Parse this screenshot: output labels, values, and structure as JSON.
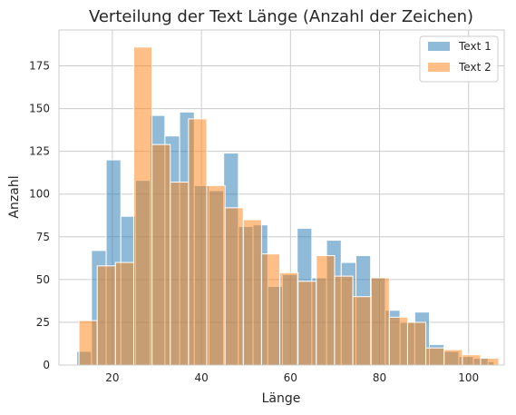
{
  "chart_data": {
    "type": "bar",
    "title": "Verteilung der Text Länge (Anzahl der Zeichen)",
    "xlabel": "Länge",
    "ylabel": "Anzahl",
    "xlim": [
      8,
      108
    ],
    "ylim": [
      0,
      196
    ],
    "xticks": [
      20,
      40,
      60,
      80,
      100
    ],
    "yticks": [
      0,
      25,
      50,
      75,
      100,
      125,
      150,
      175
    ],
    "grid": true,
    "legend_position": "top-right",
    "series": [
      {
        "name": "Text 1",
        "color": "#1f77b4",
        "opacity": 0.5,
        "bins": [
          [
            12,
            15.3,
            8
          ],
          [
            15.3,
            18.6,
            67
          ],
          [
            18.6,
            21.9,
            120
          ],
          [
            21.9,
            25.2,
            87
          ],
          [
            25.2,
            28.5,
            108
          ],
          [
            28.5,
            31.8,
            146
          ],
          [
            31.8,
            35.1,
            134
          ],
          [
            35.1,
            38.4,
            148
          ],
          [
            38.4,
            41.7,
            105
          ],
          [
            41.7,
            45.0,
            102
          ],
          [
            45.0,
            48.3,
            124
          ],
          [
            48.3,
            51.6,
            81
          ],
          [
            51.6,
            54.9,
            82
          ],
          [
            54.9,
            58.2,
            46
          ],
          [
            58.2,
            61.5,
            53
          ],
          [
            61.5,
            64.8,
            80
          ],
          [
            64.8,
            68.1,
            51
          ],
          [
            68.1,
            71.4,
            73
          ],
          [
            71.4,
            74.7,
            60
          ],
          [
            74.7,
            78.0,
            64
          ],
          [
            78.0,
            81.3,
            51
          ],
          [
            81.3,
            84.6,
            32
          ],
          [
            84.6,
            87.9,
            25
          ],
          [
            87.9,
            91.2,
            31
          ],
          [
            91.2,
            94.5,
            12
          ],
          [
            94.5,
            97.8,
            8
          ],
          [
            97.8,
            101.1,
            5
          ],
          [
            101.1,
            104.4,
            4
          ],
          [
            104.4,
            105.7,
            2
          ]
        ]
      },
      {
        "name": "Text 2",
        "color": "#ff7f0e",
        "opacity": 0.5,
        "bins": [
          [
            12.5,
            16.6,
            26
          ],
          [
            16.6,
            20.7,
            58
          ],
          [
            20.7,
            24.8,
            60
          ],
          [
            24.8,
            28.9,
            186
          ],
          [
            28.9,
            33.0,
            129
          ],
          [
            33.0,
            37.1,
            107
          ],
          [
            37.1,
            41.2,
            144
          ],
          [
            41.2,
            45.3,
            105
          ],
          [
            45.3,
            49.4,
            92
          ],
          [
            49.4,
            53.5,
            85
          ],
          [
            53.5,
            57.6,
            65
          ],
          [
            57.6,
            61.7,
            54
          ],
          [
            61.7,
            65.8,
            49
          ],
          [
            65.8,
            69.9,
            64
          ],
          [
            69.9,
            74.0,
            52
          ],
          [
            74.0,
            78.1,
            40
          ],
          [
            78.1,
            82.2,
            51
          ],
          [
            82.2,
            86.3,
            28
          ],
          [
            86.3,
            90.4,
            25
          ],
          [
            90.4,
            94.5,
            10
          ],
          [
            94.5,
            98.6,
            9
          ],
          [
            98.6,
            102.7,
            6
          ],
          [
            102.7,
            106.8,
            4
          ]
        ]
      }
    ]
  }
}
